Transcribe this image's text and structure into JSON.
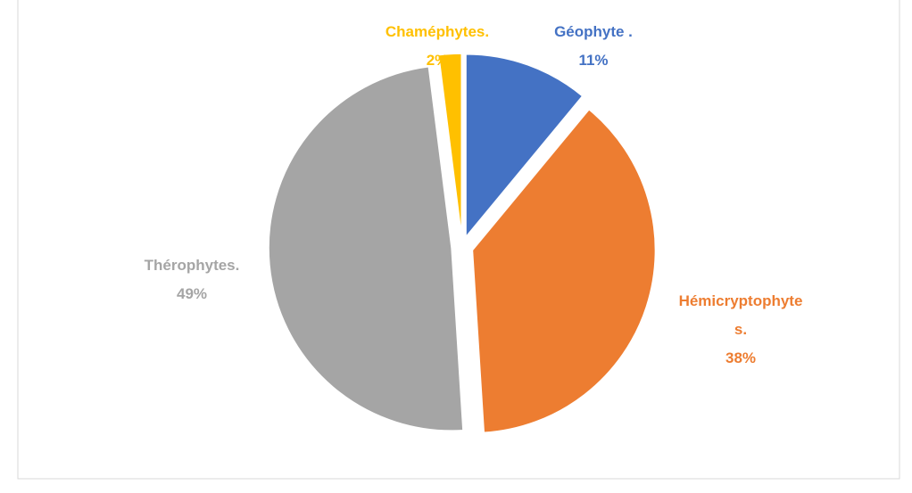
{
  "chart_data": {
    "type": "pie",
    "categories": [
      "Géophyte .",
      "Hémicryptophytes.",
      "Thérophytes.",
      "Chaméphytes."
    ],
    "values": [
      11,
      38,
      49,
      2
    ],
    "value_labels": [
      "11%",
      "38%",
      "49%",
      "2%"
    ],
    "colors": [
      "#4472c4",
      "#ed7d31",
      "#a5a5a5",
      "#ffc000"
    ]
  }
}
